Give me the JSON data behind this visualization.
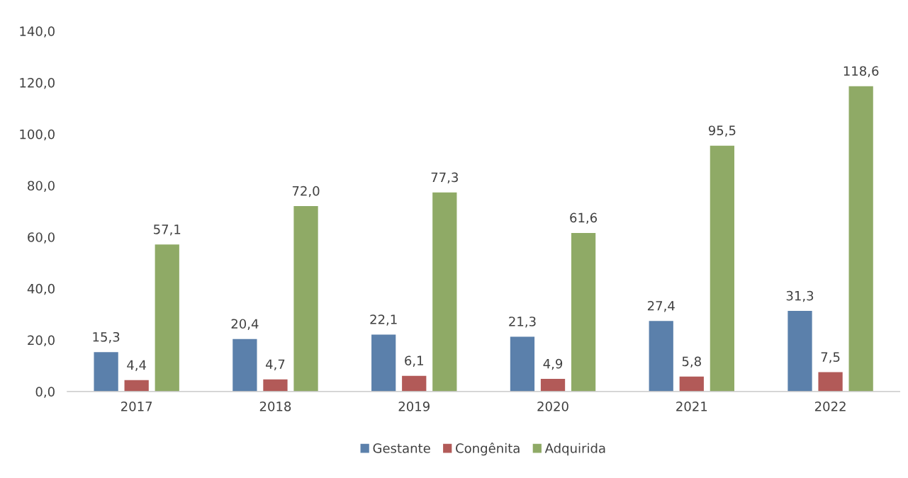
{
  "chart_data": {
    "type": "bar",
    "categories": [
      "2017",
      "2018",
      "2019",
      "2020",
      "2021",
      "2022"
    ],
    "series": [
      {
        "name": "Gestante",
        "color": "#5b80ab",
        "values": [
          15.3,
          20.4,
          22.1,
          21.3,
          27.4,
          31.3
        ],
        "value_labels": [
          "15,3",
          "20,4",
          "22,1",
          "21,3",
          "27,4",
          "31,3"
        ]
      },
      {
        "name": "Congênita",
        "color": "#b25a58",
        "values": [
          4.4,
          4.7,
          6.1,
          4.9,
          5.8,
          7.5
        ],
        "value_labels": [
          "4,4",
          "4,7",
          "6,1",
          "4,9",
          "5,8",
          "7,5"
        ]
      },
      {
        "name": "Adquirida",
        "color": "#8faa66",
        "values": [
          57.1,
          72.0,
          77.3,
          61.6,
          95.5,
          118.6
        ],
        "value_labels": [
          "57,1",
          "72,0",
          "77,3",
          "61,6",
          "95,5",
          "118,6"
        ]
      }
    ],
    "ylim": [
      0,
      140
    ],
    "yticks": [
      {
        "value": 0,
        "label": "0,0"
      },
      {
        "value": 20,
        "label": "20,0"
      },
      {
        "value": 40,
        "label": "40,0"
      },
      {
        "value": 60,
        "label": "60,0"
      },
      {
        "value": 80,
        "label": "80,0"
      },
      {
        "value": 100,
        "label": "100,0"
      },
      {
        "value": 120,
        "label": "120,0"
      },
      {
        "value": 140,
        "label": "140,0"
      }
    ],
    "grid": false,
    "legend": "bottom"
  }
}
